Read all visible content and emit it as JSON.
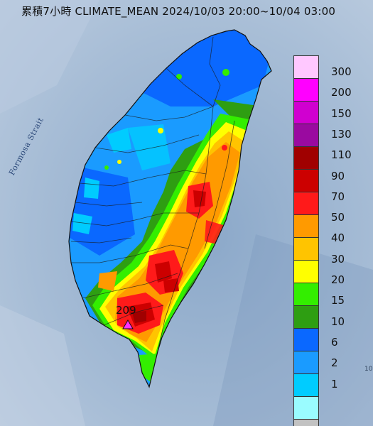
{
  "title": "累積7小時 CLIMATE_MEAN 2024/10/03 20:00~10/04 03:00",
  "sea_label": "Formosa Strait",
  "peak": {
    "value": "209",
    "marker_color": "#ff30ff",
    "icon": "triangle-icon"
  },
  "edge_fragment": "10",
  "legend": {
    "items": [
      {
        "label": "300",
        "color": "#ffc8ff"
      },
      {
        "label": "200",
        "color": "#ff00ff"
      },
      {
        "label": "150",
        "color": "#d000d0"
      },
      {
        "label": "130",
        "color": "#9a0aa0"
      },
      {
        "label": "110",
        "color": "#a00000"
      },
      {
        "label": "90",
        "color": "#cc0000"
      },
      {
        "label": "70",
        "color": "#ff1a1a"
      },
      {
        "label": "50",
        "color": "#ff9a00"
      },
      {
        "label": "40",
        "color": "#ffc400"
      },
      {
        "label": "30",
        "color": "#ffff00"
      },
      {
        "label": "20",
        "color": "#33ee00"
      },
      {
        "label": "15",
        "color": "#2e9e12"
      },
      {
        "label": "10",
        "color": "#0a68ff"
      },
      {
        "label": "6",
        "color": "#1a9bff"
      },
      {
        "label": "2",
        "color": "#00ccff"
      },
      {
        "label": "1",
        "color": "#9afcff"
      },
      {
        "label": "",
        "color": "#c2c2c2"
      }
    ]
  }
}
